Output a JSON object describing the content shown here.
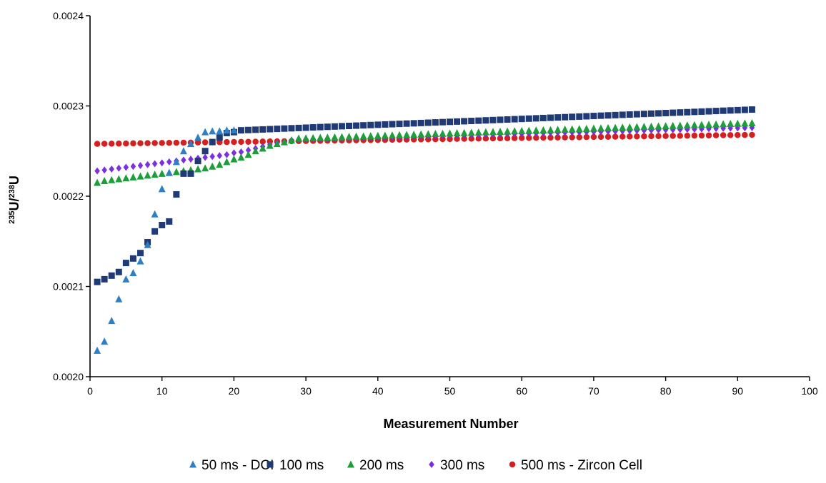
{
  "chart_data": {
    "type": "scatter",
    "xlabel": "Measurement Number",
    "ylabel": {
      "sup1": "235",
      "base1": "U/",
      "sup2": "238",
      "base2": "U"
    },
    "xlim": [
      0,
      100
    ],
    "ylim": [
      0.002,
      0.0024
    ],
    "x_ticks": [
      0,
      10,
      20,
      30,
      40,
      50,
      60,
      70,
      80,
      90,
      100
    ],
    "x_tick_labels": [
      "0",
      "10",
      "20",
      "30",
      "40",
      "50",
      "60",
      "70",
      "80",
      "90",
      "100"
    ],
    "y_ticks": [
      0.002,
      0.0021,
      0.0022,
      0.0023,
      0.0024
    ],
    "y_tick_labels": [
      "0.0020",
      "0.0021",
      "0.0022",
      "0.0023",
      "0.0024"
    ],
    "grid": false,
    "legend_position": "bottom",
    "series": [
      {
        "name": "50 ms - DCI",
        "marker": "triangle",
        "color": "#2e7fc4",
        "x": [
          1,
          2,
          3,
          4,
          5,
          6,
          7,
          8,
          9,
          10,
          11,
          12,
          13,
          14,
          15,
          16,
          17,
          18,
          19,
          20
        ],
        "y": [
          0.002029,
          0.002039,
          0.002062,
          0.002086,
          0.002108,
          0.002115,
          0.002128,
          0.002146,
          0.00218,
          0.002208,
          0.002226,
          0.002238,
          0.00225,
          0.002258,
          0.002265,
          0.002271,
          0.002272,
          0.002272,
          0.002273,
          0.002273
        ]
      },
      {
        "name": "100 ms",
        "marker": "square",
        "color": "#1f3a74",
        "x_start": 1,
        "x_end": 92,
        "y_head": [
          0.002105,
          0.002108,
          0.002112,
          0.002116,
          0.002126,
          0.002131,
          0.002137,
          0.002149,
          0.002161,
          0.002168,
          0.002172,
          0.002202,
          0.002225,
          0.002225,
          0.002239,
          0.00225,
          0.00226,
          0.002265,
          0.00227,
          0.002271
        ],
        "y_tail_start": 0.002273,
        "y_tail_end": 0.002296
      },
      {
        "name": "200 ms",
        "marker": "triangle",
        "color": "#1e9e3a",
        "x_start": 1,
        "x_end": 92,
        "y_head": [
          0.002215,
          0.002217,
          0.002218,
          0.002219,
          0.00222,
          0.002221,
          0.002222,
          0.002223,
          0.002224,
          0.002225,
          0.002226,
          0.002227,
          0.002228,
          0.002229,
          0.00223,
          0.002231,
          0.002233,
          0.002235,
          0.002238,
          0.002241,
          0.002243,
          0.002246,
          0.00225,
          0.002253,
          0.002256,
          0.002258,
          0.00226,
          0.002262
        ],
        "y_tail_start": 0.002264,
        "y_tail_end": 0.002281
      },
      {
        "name": "300 ms",
        "marker": "diamond",
        "color": "#7b2fe0",
        "x_start": 1,
        "x_end": 92,
        "y_head": [
          0.002228,
          0.002229,
          0.00223,
          0.002231,
          0.002232,
          0.002233,
          0.002234,
          0.002235,
          0.002236,
          0.002237,
          0.002238,
          0.002239,
          0.00224,
          0.002241,
          0.002242,
          0.002243,
          0.002244,
          0.002245,
          0.002246,
          0.002248,
          0.002249,
          0.002251,
          0.002253,
          0.002255,
          0.002257,
          0.002259,
          0.00226,
          0.002262
        ],
        "y_tail_start": 0.002263,
        "y_tail_end": 0.002276
      },
      {
        "name": "500 ms - Zircon Cell",
        "marker": "circle",
        "color": "#d42020",
        "x_start": 1,
        "x_end": 92,
        "y_head": [],
        "y_tail_start": 0.002258,
        "y_tail_end": 0.002268
      }
    ]
  }
}
